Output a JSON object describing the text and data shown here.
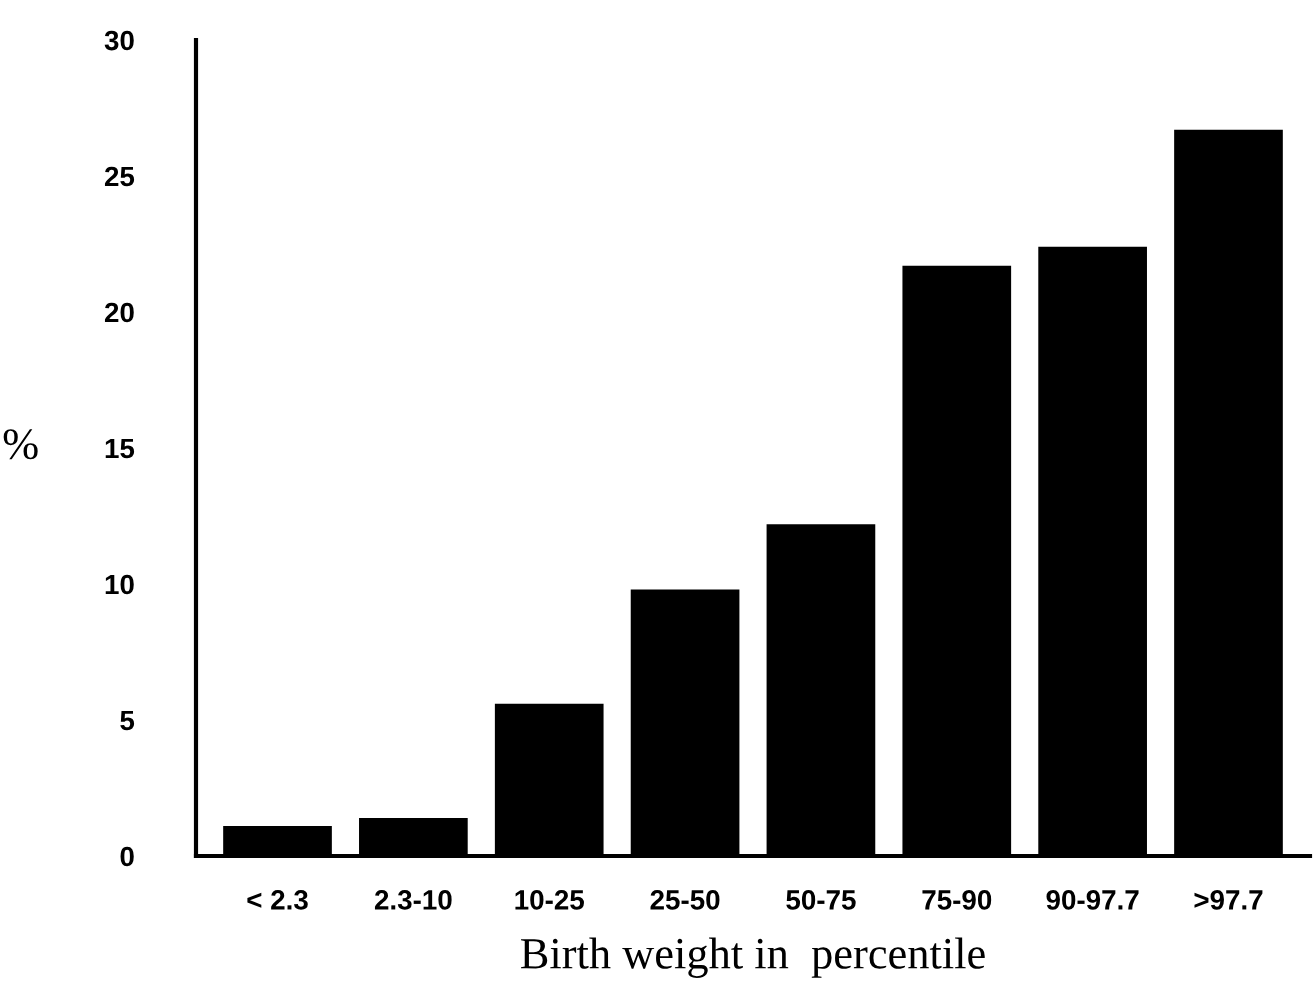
{
  "chart_data": {
    "type": "bar",
    "xlabel": "Birth weight in  percentile",
    "ylabel": "%",
    "categories": [
      "< 2.3",
      "2.3-10",
      "10-25",
      "25-50",
      "50-75",
      "75-90",
      "90-97.7",
      ">97.7"
    ],
    "values": [
      1.1,
      1.4,
      5.6,
      9.8,
      12.2,
      21.7,
      22.4,
      26.7
    ],
    "color": "#000000",
    "ylim": [
      0,
      30
    ],
    "yticks": [
      0,
      5,
      10,
      15,
      20,
      25,
      30
    ],
    "grid": false,
    "legend": false
  }
}
